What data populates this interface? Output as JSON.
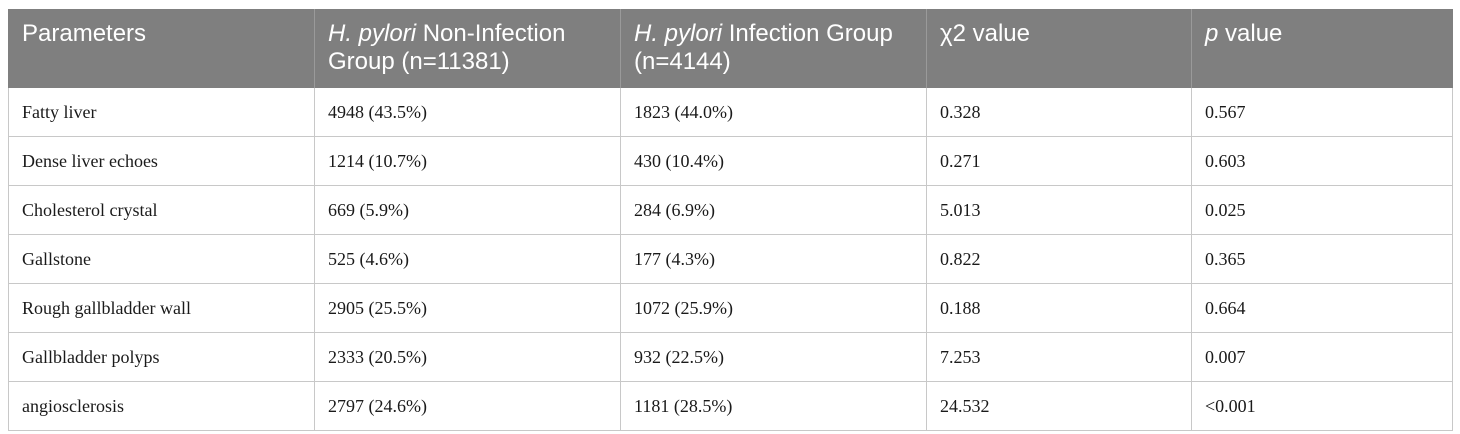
{
  "table": {
    "headers": [
      {
        "italic": "",
        "text": "Parameters"
      },
      {
        "italic": "H. pylori",
        "text": " Non-Infection Group (n=11381)"
      },
      {
        "italic": "H. pylori",
        "text": " Infection Group (n=4144)"
      },
      {
        "italic": "",
        "text": "χ2 value"
      },
      {
        "italic": "p",
        "text": " value"
      }
    ],
    "rows": [
      [
        "Fatty liver",
        "4948 (43.5%)",
        "1823 (44.0%)",
        "0.328",
        "0.567"
      ],
      [
        "Dense liver echoes",
        "1214 (10.7%)",
        "430 (10.4%)",
        "0.271",
        "0.603"
      ],
      [
        "Cholesterol crystal",
        "669 (5.9%)",
        "284 (6.9%)",
        "5.013",
        "0.025"
      ],
      [
        "Gallstone",
        "525 (4.6%)",
        "177 (4.3%)",
        "0.822",
        "0.365"
      ],
      [
        "Rough gallbladder wall",
        "2905 (25.5%)",
        "1072 (25.9%)",
        "0.188",
        "0.664"
      ],
      [
        "Gallbladder polyps",
        "2333 (20.5%)",
        "932 (22.5%)",
        "7.253",
        "0.007"
      ],
      [
        "angiosclerosis",
        "2797 (24.6%)",
        "1181 (28.5%)",
        "24.532",
        "<0.001"
      ]
    ]
  },
  "colors": {
    "header_bg": "#7f7f7f",
    "header_text": "#ffffff",
    "grid": "#c8c8c8"
  }
}
